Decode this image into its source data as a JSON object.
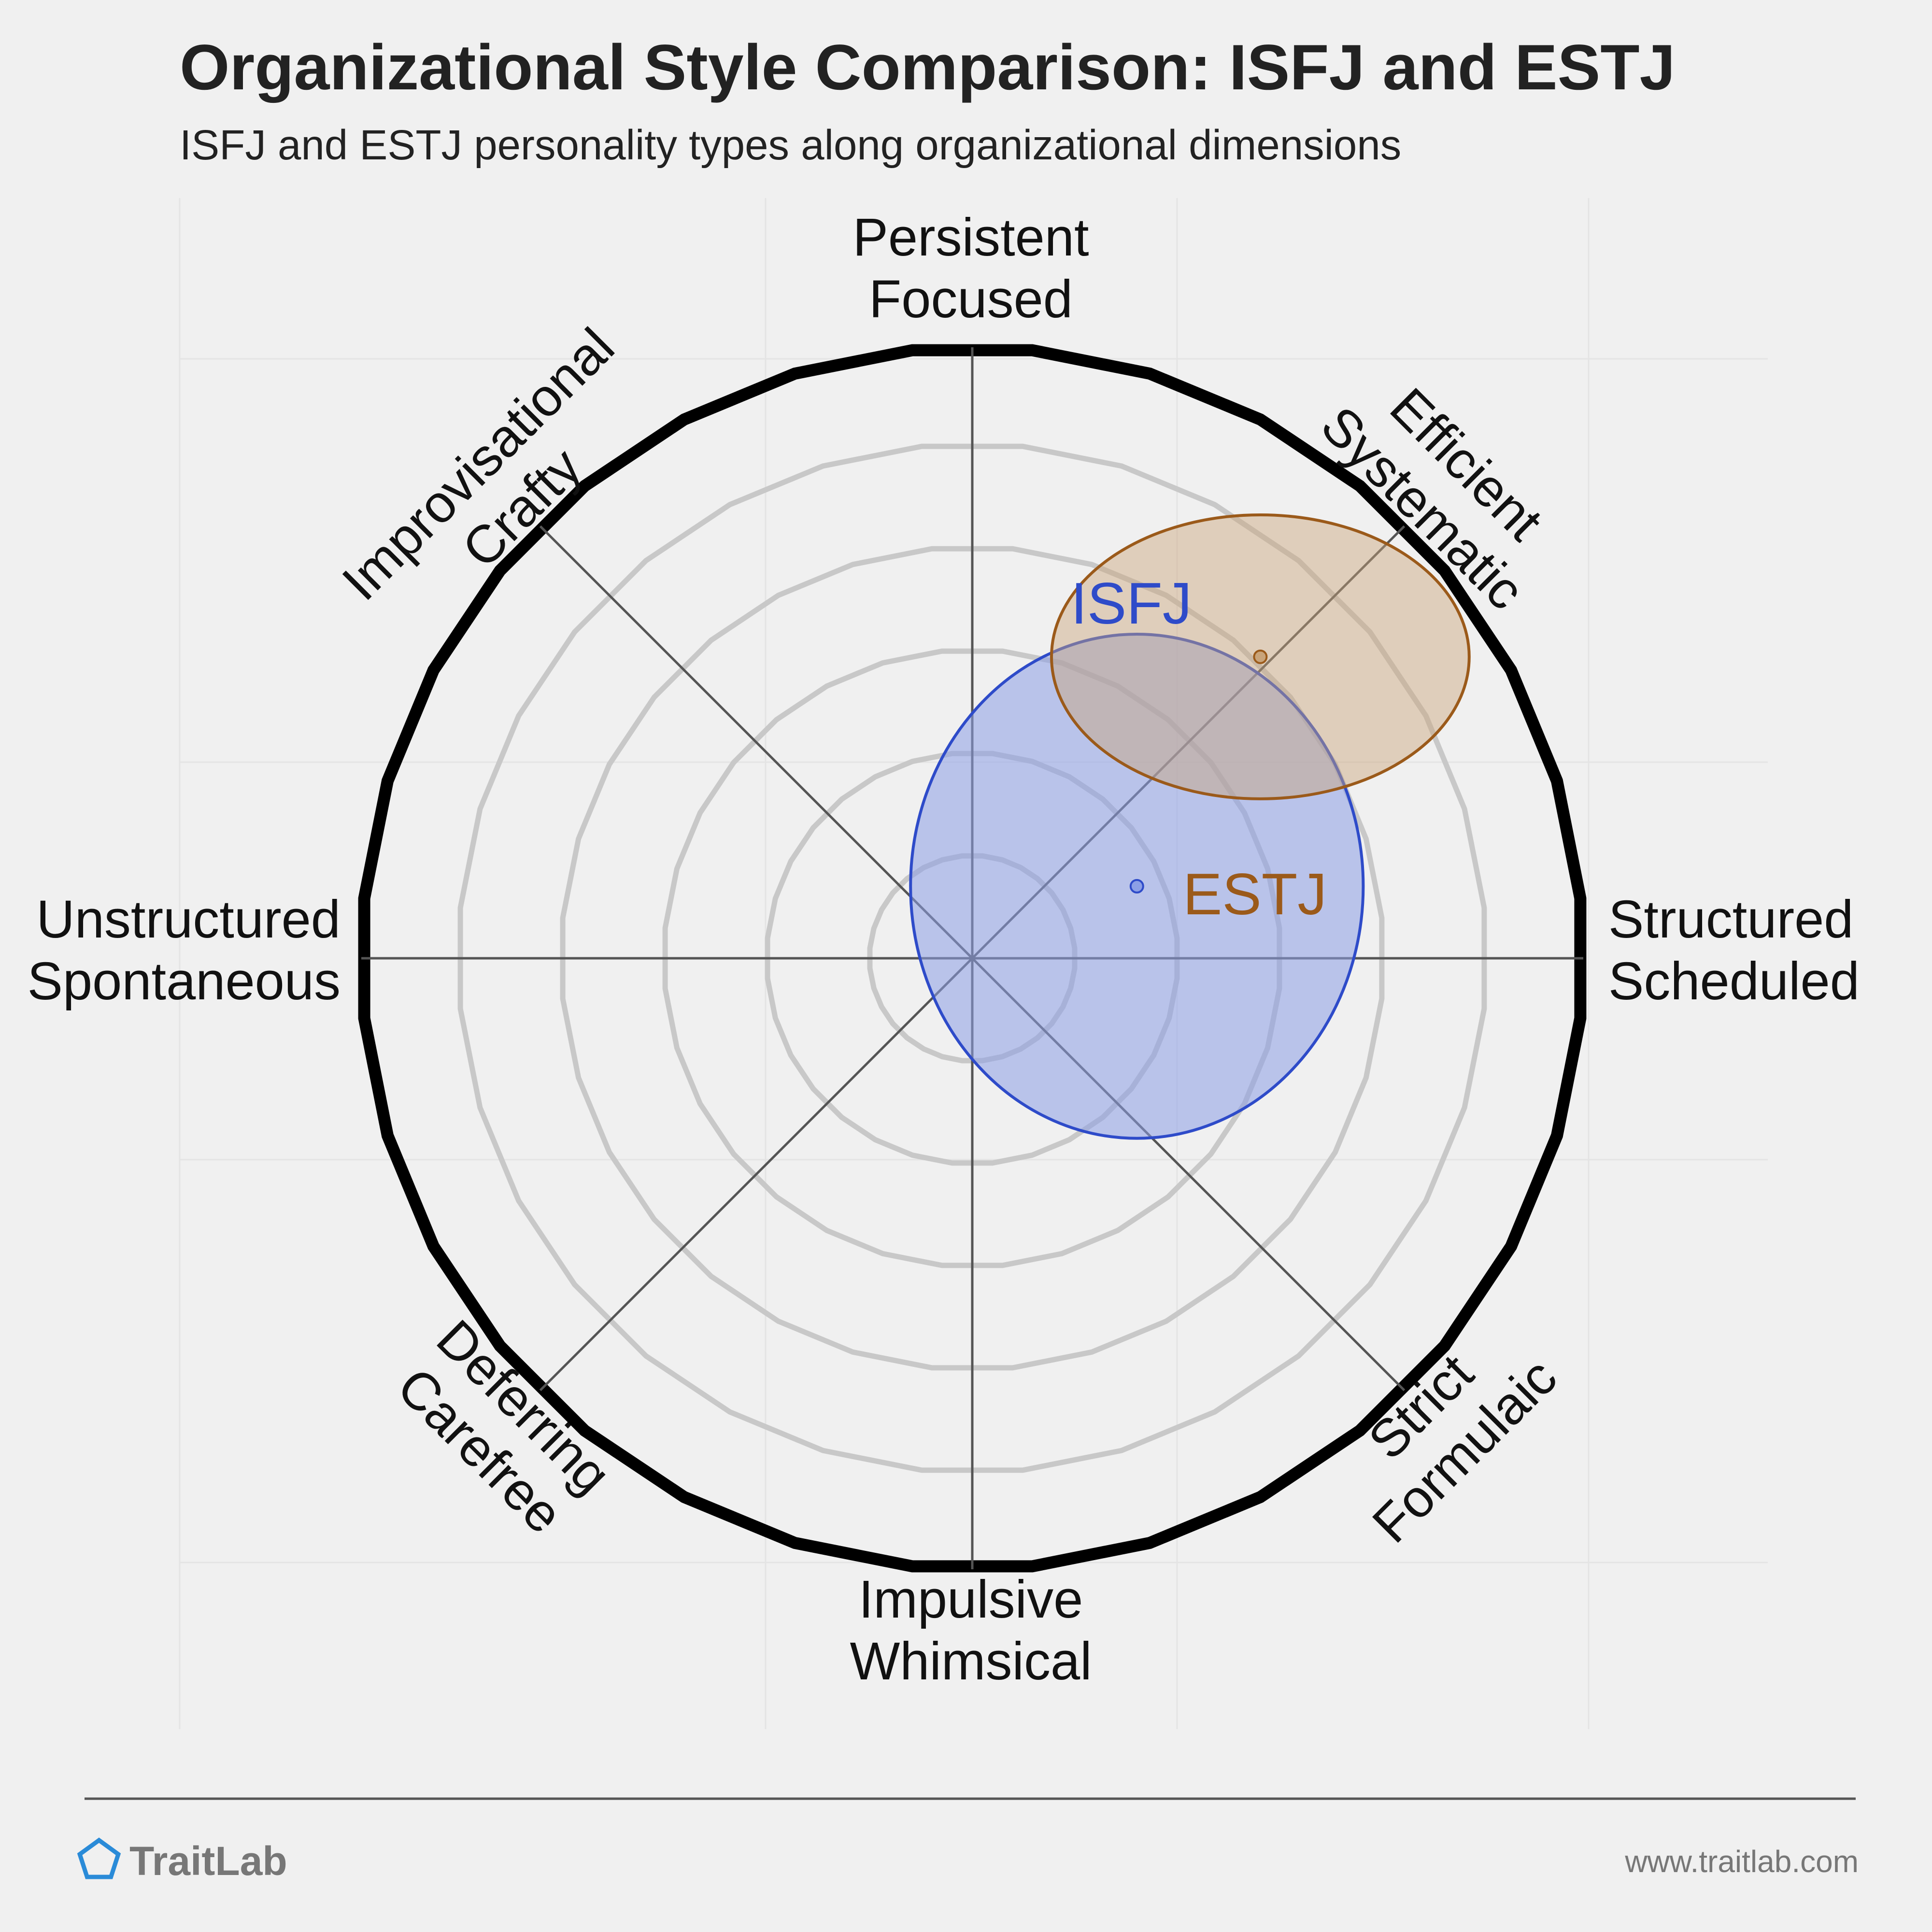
{
  "chart_data": {
    "type": "radar-scatter",
    "title": "Organizational Style Comparison: ISFJ and ESTJ",
    "subtitle": "ISFJ and ESTJ personality types along organizational dimensions",
    "axes": [
      {
        "angle_deg": 0,
        "lines": [
          "Structured",
          "Scheduled"
        ]
      },
      {
        "angle_deg": 45,
        "lines": [
          "Efficient",
          "Systematic"
        ]
      },
      {
        "angle_deg": 90,
        "lines": [
          "Persistent",
          "Focused"
        ]
      },
      {
        "angle_deg": 135,
        "lines": [
          "Improvisational",
          "Crafty"
        ]
      },
      {
        "angle_deg": 180,
        "lines": [
          "Unstructured",
          "Spontaneous"
        ]
      },
      {
        "angle_deg": 225,
        "lines": [
          "Deferring",
          "Carefree"
        ]
      },
      {
        "angle_deg": 270,
        "lines": [
          "Impulsive",
          "Whimsical"
        ]
      },
      {
        "angle_deg": 315,
        "lines": [
          "Strict",
          "Formulaic"
        ]
      }
    ],
    "rings": 6,
    "range": [
      -6,
      6
    ],
    "series": [
      {
        "name": "ISFJ",
        "color": "#2e4bc9",
        "fill": "#8c9fe6",
        "fill_opacity": 0.55,
        "x": 1.6,
        "y": 0.7,
        "rx": 2.2,
        "ry": 2.45
      },
      {
        "name": "ESTJ",
        "color": "#9b5a1a",
        "fill": "#c9a47a",
        "fill_opacity": 0.45,
        "x": 2.8,
        "y": 2.93,
        "rx": 2.03,
        "ry": 1.38
      }
    ]
  },
  "footer": {
    "brand": "TraitLab",
    "url": "www.traitlab.com",
    "logo_icon": "pentagon-icon",
    "logo_color": "#2a8bd8"
  }
}
